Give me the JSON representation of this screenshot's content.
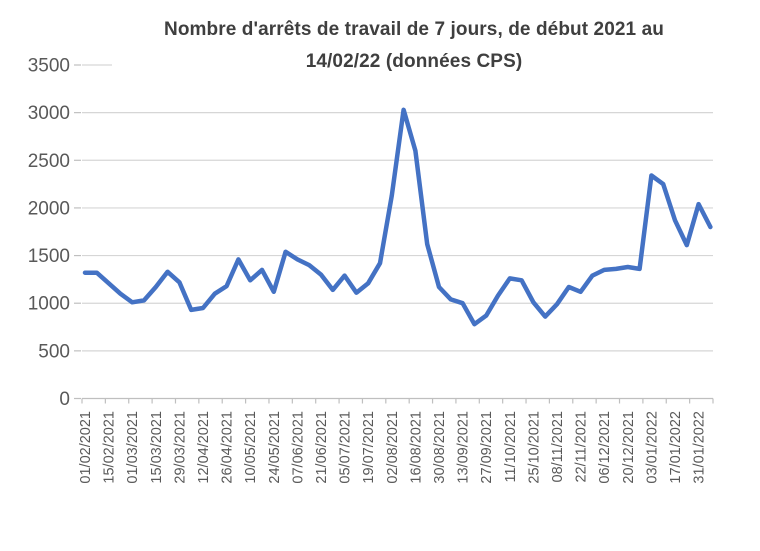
{
  "chart_data": {
    "type": "line",
    "title": "Nombre d'arrêts de travail de 7 jours, de début 2021 au 14/02/22 (données CPS)",
    "title_lines": [
      "Nombre d'arrêts de travail de 7 jours, de début 2021 au",
      "14/02/22 (données CPS)"
    ],
    "x": [
      "01/02/2021",
      "08/02/2021",
      "15/02/2021",
      "22/02/2021",
      "01/03/2021",
      "08/03/2021",
      "15/03/2021",
      "22/03/2021",
      "29/03/2021",
      "05/04/2021",
      "12/04/2021",
      "19/04/2021",
      "26/04/2021",
      "03/05/2021",
      "10/05/2021",
      "17/05/2021",
      "24/05/2021",
      "31/05/2021",
      "07/06/2021",
      "14/06/2021",
      "21/06/2021",
      "28/06/2021",
      "05/07/2021",
      "12/07/2021",
      "19/07/2021",
      "26/07/2021",
      "02/08/2021",
      "09/08/2021",
      "16/08/2021",
      "23/08/2021",
      "30/08/2021",
      "06/09/2021",
      "13/09/2021",
      "20/09/2021",
      "27/09/2021",
      "04/10/2021",
      "11/10/2021",
      "18/10/2021",
      "25/10/2021",
      "01/11/2021",
      "08/11/2021",
      "15/11/2021",
      "22/11/2021",
      "29/11/2021",
      "06/12/2021",
      "13/12/2021",
      "20/12/2021",
      "27/12/2021",
      "03/01/2022",
      "10/01/2022",
      "17/01/2022",
      "24/01/2022",
      "31/01/2022",
      "07/02/2022"
    ],
    "values": [
      1320,
      1320,
      1210,
      1100,
      1010,
      1030,
      1170,
      1330,
      1220,
      930,
      950,
      1100,
      1180,
      1460,
      1240,
      1350,
      1120,
      1540,
      1460,
      1400,
      1300,
      1140,
      1290,
      1110,
      1210,
      1420,
      2130,
      3030,
      2600,
      1620,
      1170,
      1040,
      1000,
      780,
      870,
      1080,
      1260,
      1240,
      1010,
      860,
      990,
      1170,
      1120,
      1290,
      1350,
      1360,
      1380,
      1360,
      2340,
      2250,
      1870,
      1610,
      2040,
      1800
    ],
    "x_tick_labels": [
      "01/02/2021",
      "15/02/2021",
      "01/03/2021",
      "15/03/2021",
      "29/03/2021",
      "12/04/2021",
      "26/04/2021",
      "10/05/2021",
      "24/05/2021",
      "07/06/2021",
      "21/06/2021",
      "05/07/2021",
      "19/07/2021",
      "02/08/2021",
      "16/08/2021",
      "30/08/2021",
      "13/09/2021",
      "27/09/2021",
      "11/10/2021",
      "25/10/2021",
      "08/11/2021",
      "22/11/2021",
      "06/12/2021",
      "20/12/2021",
      "03/01/2022",
      "17/01/2022",
      "31/01/2022"
    ],
    "y_ticks": [
      0,
      500,
      1000,
      1500,
      2000,
      2500,
      3000,
      3500
    ],
    "ylim": [
      0,
      3500
    ],
    "xlabel": "",
    "ylabel": "",
    "grid": "horizontal",
    "legend": "none",
    "line_color": "#4472C4",
    "axis_text_color": "#595959",
    "title_color": "#3F3F3F",
    "grid_color": "#D6D6D6",
    "axis_line_color": "#BFBFBF",
    "background_color": "#FFFFFF"
  }
}
